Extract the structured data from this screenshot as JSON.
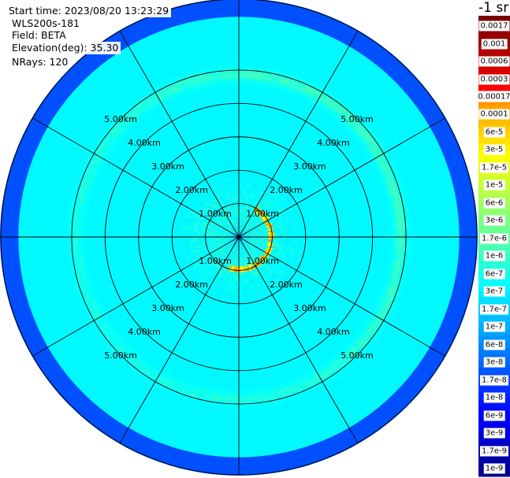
{
  "header": {
    "start_time": "Start time: 2023/08/20 13:23:29",
    "device": "WLS200s-181",
    "field": "Field: BETA",
    "elevation": "Elevation(deg): 35.30",
    "nrays": "NRays: 120"
  },
  "colorbar": {
    "unit_label": "-1 sr",
    "upper_labels": [
      "0.0017",
      "0.001",
      "0.0006",
      "0.0003"
    ],
    "lower_labels": [
      "0.00017",
      "0.0001",
      "6e-5",
      "3e-5",
      "1.7e-5",
      "1e-5",
      "6e-6",
      "3e-6",
      "1.7e-6",
      "1e-6",
      "6e-7",
      "3e-7",
      "1.7e-7",
      "1e-7",
      "6e-8",
      "3e-8",
      "1.7e-8",
      "1e-8",
      "6e-9",
      "3e-9",
      "1.7e-9",
      "1e-9"
    ],
    "colors": [
      "#000080",
      "#0000c8",
      "#0000ff",
      "#0040ff",
      "#0080ff",
      "#00b0ff",
      "#00e0ff",
      "#20ffe0",
      "#60ffa0",
      "#a0ff60",
      "#e0ff20",
      "#ffe000",
      "#ffb000",
      "#ff8000",
      "#ff5000",
      "#ff2000",
      "#e00000",
      "#b00000",
      "#800000"
    ]
  },
  "chart_data": {
    "type": "heatmap",
    "projection": "polar (PPI)",
    "field": "BETA",
    "elevation_deg": 35.3,
    "n_rays": 120,
    "range_rings_km": [
      1.0,
      2.0,
      3.0,
      4.0,
      5.0
    ],
    "ring_labels": [
      "1.00km",
      "2.00km",
      "3.00km",
      "4.00km",
      "5.00km"
    ],
    "max_range_km": 6.3,
    "azimuth_lines_deg": [
      0,
      30,
      60,
      90,
      120,
      150,
      180,
      210,
      240,
      270,
      300,
      330
    ],
    "color_scale": "log",
    "value_range_sr-1": [
      1e-09,
      0.0017
    ],
    "features": [
      {
        "description": "near-field high backscatter crescent",
        "range_km": [
          0.8,
          1.1
        ],
        "azimuth_deg": [
          30,
          200
        ],
        "value_sr-1": 3e-05
      },
      {
        "description": "bright ring",
        "range_km": [
          4.6,
          5.2
        ],
        "azimuth_deg": [
          0,
          360
        ],
        "value_sr-1": 2e-07
      }
    ]
  }
}
